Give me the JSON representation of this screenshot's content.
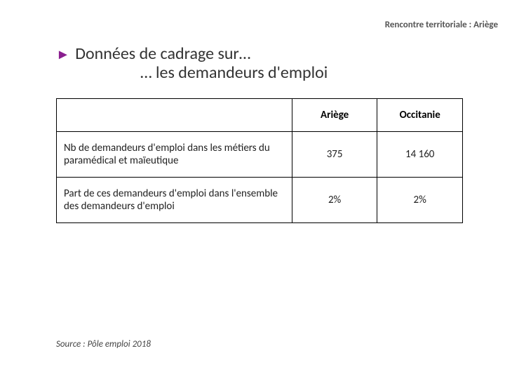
{
  "header": {
    "right_label": "Rencontre territoriale : Ariège"
  },
  "title": {
    "arrow_color": "#8a1e8f",
    "line1": "Données de cadrage sur…",
    "line2": "… les demandeurs d'emploi"
  },
  "table": {
    "columns": [
      "",
      "Ariège",
      "Occitanie"
    ],
    "rows": [
      {
        "label": "Nb de demandeurs d'emploi dans les métiers du paramédical et maïeutique",
        "ariege": "375",
        "occitanie": "14 160"
      },
      {
        "label": "Part de ces demandeurs d'emploi dans l'ensemble des demandeurs d'emploi",
        "ariege": "2%",
        "occitanie": "2%"
      }
    ],
    "col_widths_pct": [
      58,
      21,
      21
    ],
    "border_color": "#000000",
    "header_fontsize": 15,
    "cell_fontsize": 15
  },
  "source": "Source : Pôle emploi 2018",
  "colors": {
    "background": "#ffffff",
    "text": "#333333",
    "accent": "#8a1e8f"
  }
}
